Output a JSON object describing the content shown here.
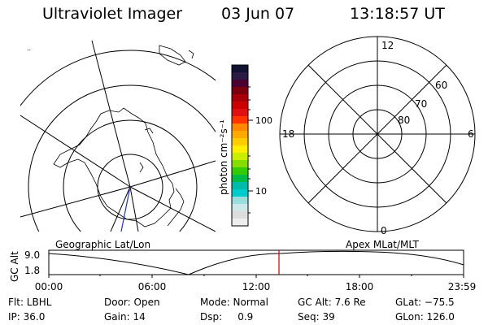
{
  "header": {
    "title": "Ultraviolet Imager",
    "date": "03 Jun 07",
    "time": "13:18:57 UT"
  },
  "colorbar": {
    "unit_label": "photon cm⁻²s⁻¹",
    "tick_labels": [
      "100",
      "10"
    ],
    "colors_top_to_bottom": [
      "#111133",
      "#2a1a44",
      "#4a0033",
      "#7a0010",
      "#a8000a",
      "#cc0000",
      "#e01010",
      "#ff3300",
      "#ff8800",
      "#ffaa00",
      "#ffcc00",
      "#ffee00",
      "#ccee00",
      "#88dd00",
      "#33cc00",
      "#00bb44",
      "#00bbaa",
      "#00cccc",
      "#99dddd",
      "#cce8e8",
      "#dddddd",
      "#eeeeee"
    ]
  },
  "left_map": {
    "caption": "Geographic Lat/Lon"
  },
  "right_map": {
    "caption": "Apex MLat/MLT",
    "mlt_labels": [
      "12",
      "18",
      "6",
      "0"
    ],
    "mlat_labels": [
      "60",
      "70",
      "80"
    ]
  },
  "gc_plot": {
    "ylabel": "GC Alt",
    "yticks": [
      "9.0",
      "1.8"
    ],
    "xticks": [
      "00:00",
      "06:00",
      "12:00",
      "18:00",
      "23:59"
    ],
    "current_time_marker_color": "#cc0000"
  },
  "info": {
    "flt": "Flt: LBHL",
    "door": "Door: Open",
    "mode": "Mode: Normal",
    "gc_alt": "GC Alt: 7.6 Re",
    "glat": "GLat: −75.5",
    "ip": "IP: 36.0",
    "gain": "Gain: 14",
    "dsp": "Dsp:     0.9",
    "seq": "Seq: 39",
    "glon": "GLon: 126.0"
  }
}
